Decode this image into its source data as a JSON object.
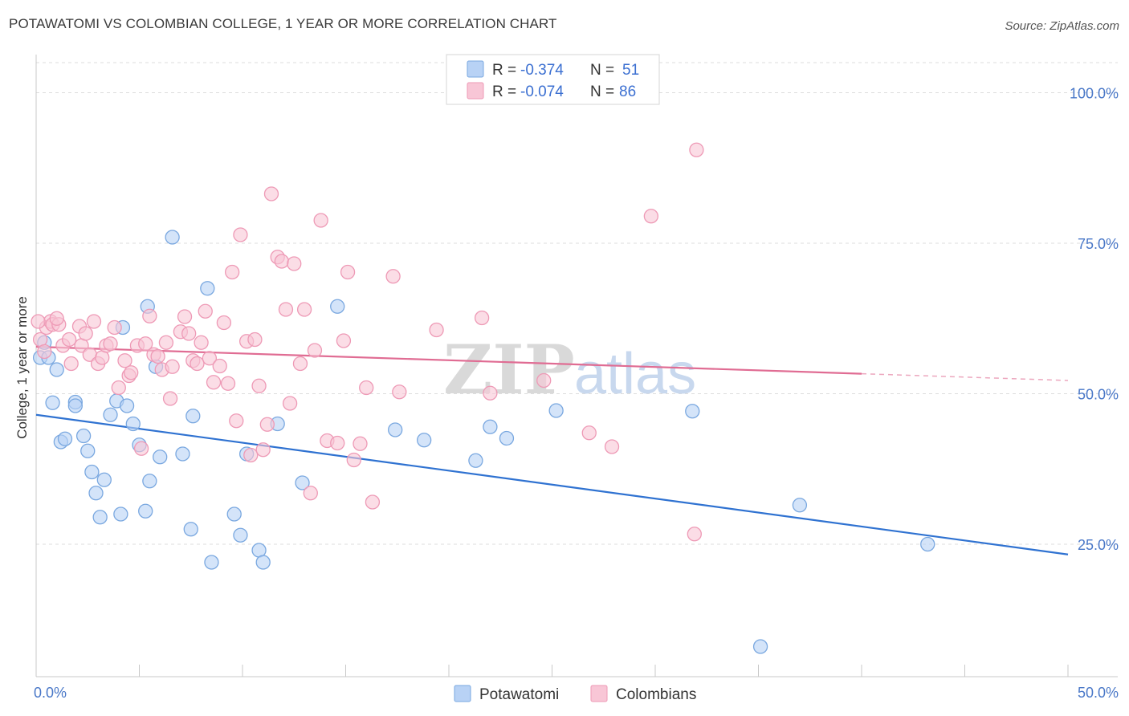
{
  "title": "POTAWATOMI VS COLOMBIAN COLLEGE, 1 YEAR OR MORE CORRELATION CHART",
  "source": "Source: ZipAtlas.com",
  "watermark": {
    "zip": "ZIP",
    "atlas": "atlas"
  },
  "colors": {
    "blue_fill": "#b8d2f5",
    "blue_stroke": "#7aa8e0",
    "blue_line": "#2f72d1",
    "pink_fill": "#f8c6d6",
    "pink_stroke": "#ee9ab6",
    "pink_line": "#e06c93"
  },
  "legend": {
    "r_label": "R =",
    "n_label": "N =",
    "rows": [
      {
        "r": "-0.374",
        "n": "51",
        "series": "blue"
      },
      {
        "r": "-0.074",
        "n": "86",
        "series": "pink"
      }
    ]
  },
  "bottom_legend": [
    "Potawatomi",
    "Colombians"
  ],
  "chart_data": {
    "type": "scatter",
    "title": "POTAWATOMI VS COLOMBIAN COLLEGE, 1 YEAR OR MORE CORRELATION CHART",
    "xlabel": "",
    "ylabel": "College, 1 year or more",
    "xlim": [
      0,
      50
    ],
    "ylim": [
      3,
      105
    ],
    "x_tick_labels": [
      "0.0%",
      "50.0%"
    ],
    "y_ticks": [
      25,
      50,
      75,
      100
    ],
    "y_tick_labels": [
      "25.0%",
      "50.0%",
      "75.0%",
      "100.0%"
    ],
    "grid": true,
    "series": [
      {
        "name": "Potawatomi",
        "color": "#b8d2f5",
        "trend": {
          "x": [
            0,
            50
          ],
          "y": [
            46.5,
            23.3
          ],
          "solid_until": 50
        },
        "points": [
          [
            0.2,
            56
          ],
          [
            0.4,
            58.5
          ],
          [
            0.6,
            56
          ],
          [
            1.0,
            54
          ],
          [
            0.8,
            48.5
          ],
          [
            1.9,
            48.6
          ],
          [
            1.9,
            48
          ],
          [
            1.2,
            42
          ],
          [
            1.4,
            42.5
          ],
          [
            2.3,
            43
          ],
          [
            2.5,
            40.5
          ],
          [
            2.7,
            37
          ],
          [
            2.9,
            33.5
          ],
          [
            3.3,
            35.7
          ],
          [
            3.1,
            29.5
          ],
          [
            4.1,
            30
          ],
          [
            3.6,
            46.5
          ],
          [
            3.9,
            48.8
          ],
          [
            4.4,
            48
          ],
          [
            4.7,
            45
          ],
          [
            5.0,
            41.5
          ],
          [
            5.5,
            35.5
          ],
          [
            5.3,
            30.5
          ],
          [
            6.0,
            39.5
          ],
          [
            5.8,
            54.5
          ],
          [
            7.1,
            40
          ],
          [
            7.5,
            27.5
          ],
          [
            7.6,
            46.3
          ],
          [
            8.5,
            22
          ],
          [
            8.3,
            67.5
          ],
          [
            9.6,
            30
          ],
          [
            9.9,
            26.5
          ],
          [
            10.2,
            40
          ],
          [
            10.8,
            24
          ],
          [
            11.0,
            22
          ],
          [
            11.7,
            45
          ],
          [
            12.9,
            35.2
          ],
          [
            14.6,
            64.5
          ],
          [
            6.6,
            76
          ],
          [
            17.4,
            44
          ],
          [
            18.8,
            42.3
          ],
          [
            21.3,
            38.9
          ],
          [
            22.0,
            44.5
          ],
          [
            22.8,
            42.6
          ],
          [
            25.2,
            47.2
          ],
          [
            31.8,
            47.1
          ],
          [
            35.1,
            8
          ],
          [
            37.0,
            31.5
          ],
          [
            43.2,
            25
          ],
          [
            5.4,
            64.5
          ],
          [
            4.2,
            61
          ]
        ]
      },
      {
        "name": "Colombians",
        "color": "#f8c6d6",
        "trend": {
          "x": [
            0,
            50
          ],
          "y": [
            57.8,
            52.2
          ],
          "solid_until": 40
        },
        "points": [
          [
            0.2,
            59
          ],
          [
            0.4,
            57
          ],
          [
            0.5,
            61
          ],
          [
            0.7,
            62
          ],
          [
            0.8,
            61.5
          ],
          [
            1.1,
            61.5
          ],
          [
            1.3,
            58
          ],
          [
            1.6,
            59
          ],
          [
            1.7,
            55
          ],
          [
            2.1,
            61.2
          ],
          [
            2.2,
            58
          ],
          [
            2.4,
            60
          ],
          [
            2.6,
            56.5
          ],
          [
            2.8,
            62
          ],
          [
            3.0,
            55
          ],
          [
            3.2,
            56
          ],
          [
            3.4,
            58
          ],
          [
            3.6,
            58.3
          ],
          [
            3.8,
            61
          ],
          [
            4.0,
            51
          ],
          [
            4.3,
            55.5
          ],
          [
            4.5,
            53
          ],
          [
            4.6,
            53.5
          ],
          [
            4.9,
            58
          ],
          [
            5.1,
            40.9
          ],
          [
            5.3,
            58.3
          ],
          [
            5.5,
            62.9
          ],
          [
            5.7,
            56.5
          ],
          [
            5.9,
            56.2
          ],
          [
            6.1,
            54
          ],
          [
            6.3,
            58.5
          ],
          [
            6.6,
            54.5
          ],
          [
            6.5,
            49.2
          ],
          [
            7.0,
            60.3
          ],
          [
            7.2,
            62.8
          ],
          [
            7.4,
            60
          ],
          [
            7.6,
            55.5
          ],
          [
            7.8,
            55
          ],
          [
            8.0,
            58.5
          ],
          [
            8.2,
            63.7
          ],
          [
            8.4,
            55.9
          ],
          [
            8.6,
            51.9
          ],
          [
            8.9,
            54.6
          ],
          [
            9.1,
            61.8
          ],
          [
            9.3,
            51.7
          ],
          [
            9.5,
            70.2
          ],
          [
            9.7,
            45.5
          ],
          [
            9.9,
            76.4
          ],
          [
            10.2,
            58.7
          ],
          [
            10.4,
            39.8
          ],
          [
            10.6,
            59
          ],
          [
            10.8,
            51.3
          ],
          [
            11.0,
            40.7
          ],
          [
            11.2,
            44.9
          ],
          [
            11.4,
            83.2
          ],
          [
            11.7,
            72.7
          ],
          [
            11.9,
            72
          ],
          [
            12.1,
            64
          ],
          [
            12.3,
            48.4
          ],
          [
            12.5,
            71.6
          ],
          [
            12.8,
            55
          ],
          [
            13.0,
            64
          ],
          [
            13.3,
            33.5
          ],
          [
            13.5,
            57.2
          ],
          [
            13.8,
            78.8
          ],
          [
            14.1,
            42.2
          ],
          [
            14.6,
            41.8
          ],
          [
            14.9,
            58.8
          ],
          [
            15.1,
            70.2
          ],
          [
            15.4,
            39
          ],
          [
            15.7,
            41.7
          ],
          [
            16.0,
            51
          ],
          [
            16.3,
            32
          ],
          [
            17.3,
            69.5
          ],
          [
            17.6,
            50.3
          ],
          [
            19.4,
            60.6
          ],
          [
            21.6,
            62.6
          ],
          [
            22.0,
            50.1
          ],
          [
            24.6,
            52.2
          ],
          [
            26.8,
            43.5
          ],
          [
            27.9,
            41.2
          ],
          [
            29.8,
            79.5
          ],
          [
            32.0,
            90.5
          ],
          [
            31.9,
            26.7
          ],
          [
            0.1,
            62
          ],
          [
            1.0,
            62.5
          ]
        ]
      }
    ]
  }
}
